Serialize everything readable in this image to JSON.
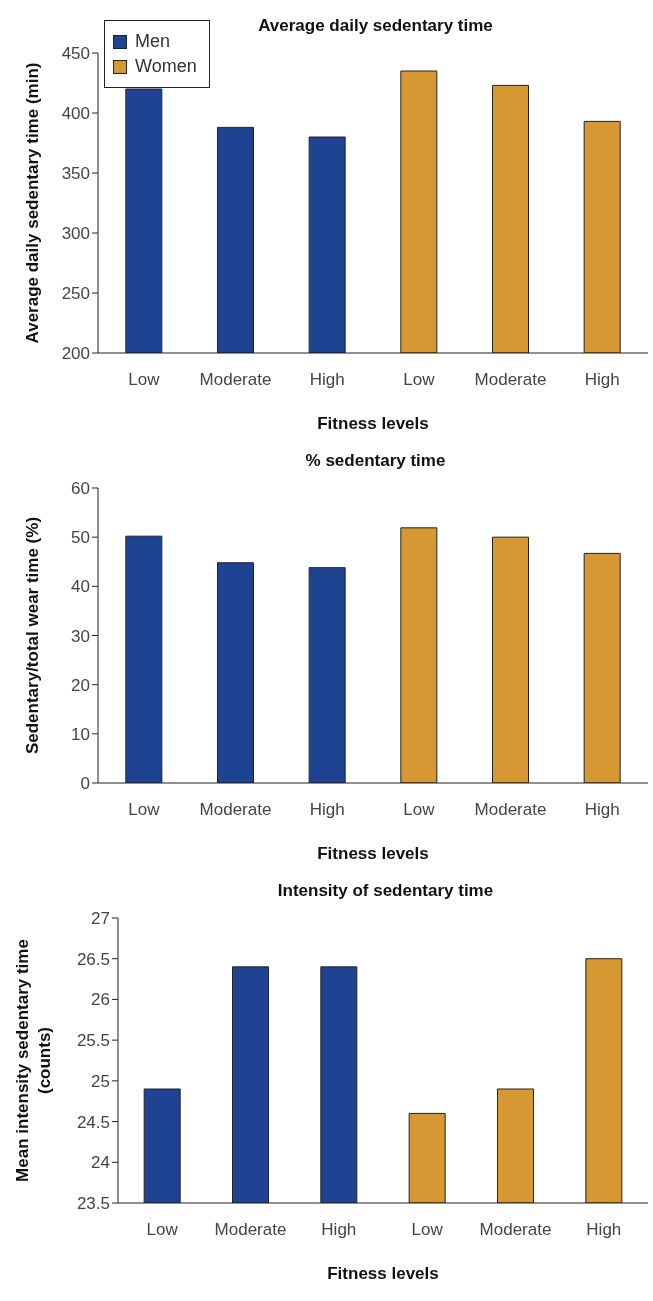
{
  "chart_data": [
    {
      "type": "bar",
      "title": "Average daily sedentary time",
      "xlabel": "Fitness levels",
      "ylabel": "Average daily sedentary time (min)",
      "categories": [
        "Low",
        "Moderate",
        "High",
        "Low",
        "Moderate",
        "High"
      ],
      "series": [
        {
          "name": "Men",
          "color": "#1f4393",
          "values": [
            420,
            388,
            380,
            null,
            null,
            null
          ]
        },
        {
          "name": "Women",
          "color": "#d69833",
          "values": [
            null,
            null,
            null,
            435,
            423,
            393
          ]
        }
      ],
      "ylim": [
        200,
        450
      ],
      "yticks": [
        200,
        250,
        300,
        350,
        400,
        450
      ],
      "grid": false,
      "legend": "top left"
    },
    {
      "type": "bar",
      "title": "% sedentary time",
      "xlabel": "Fitness levels",
      "ylabel": "Sedentary/total wear time (%)",
      "categories": [
        "Low",
        "Moderate",
        "High",
        "Low",
        "Moderate",
        "High"
      ],
      "series": [
        {
          "color": "#1f4393",
          "values": [
            50.2,
            44.8,
            43.8,
            null,
            null,
            null
          ]
        },
        {
          "color": "#d69833",
          "values": [
            null,
            null,
            null,
            51.9,
            50,
            46.7
          ]
        }
      ],
      "ylim": [
        0,
        60
      ],
      "yticks": [
        0,
        10,
        20,
        30,
        40,
        50,
        60
      ],
      "grid": false
    },
    {
      "type": "bar",
      "title": "Intensity of sedentary time",
      "xlabel": "Fitness levels",
      "ylabel": "Mean intensity sedentary time (counts)",
      "categories": [
        "Low",
        "Moderate",
        "High",
        "Low",
        "Moderate",
        "High"
      ],
      "series": [
        {
          "color": "#1f4393",
          "values": [
            24.9,
            26.4,
            26.4,
            null,
            null,
            null
          ]
        },
        {
          "color": "#d69833",
          "values": [
            null,
            null,
            null,
            24.6,
            24.9,
            26.5
          ]
        }
      ],
      "ylim": [
        23.5,
        27
      ],
      "yticks": [
        23.5,
        24,
        24.5,
        25,
        25.5,
        26,
        26.5,
        27
      ],
      "grid": false
    }
  ]
}
